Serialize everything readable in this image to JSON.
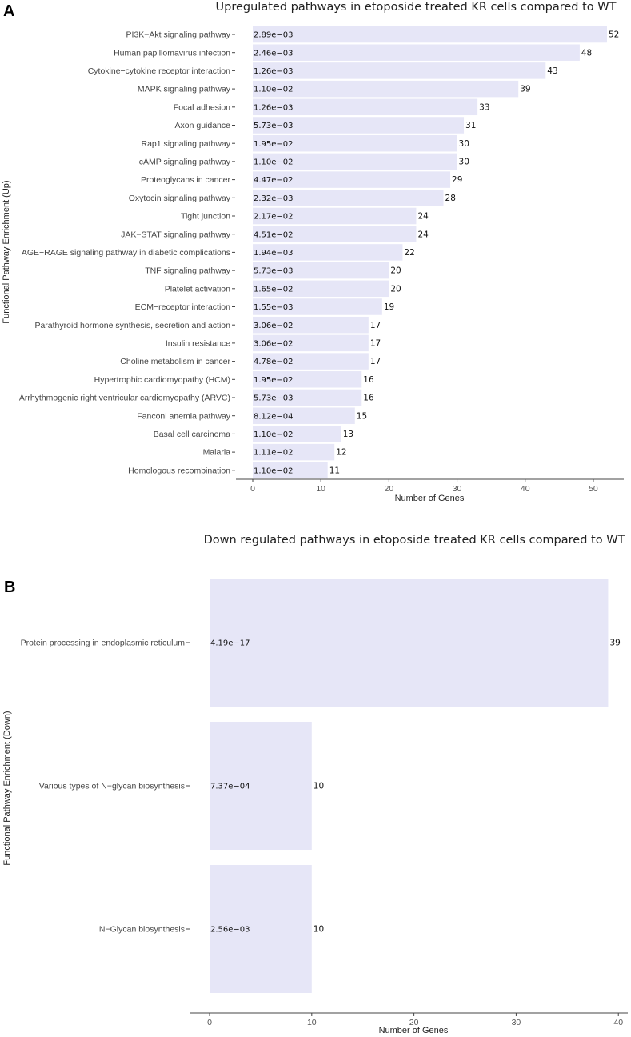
{
  "chart_data": [
    {
      "panel": "A",
      "type": "bar",
      "orientation": "horizontal",
      "title": "Upregulated pathways in etoposide treated KR cells compared to WT",
      "xlabel": "Number of Genes",
      "ylabel": "Functional Pathway Enrichment (Up)",
      "xlim": [
        0,
        54
      ],
      "xticks": [
        0,
        10,
        20,
        30,
        40,
        50
      ],
      "categories": [
        "PI3K−Akt signaling pathway",
        "Human papillomavirus infection",
        "Cytokine−cytokine receptor interaction",
        "MAPK signaling pathway",
        "Focal adhesion",
        "Axon guidance",
        "Rap1 signaling pathway",
        "cAMP signaling pathway",
        "Proteoglycans in cancer",
        "Oxytocin signaling pathway",
        "Tight junction",
        "JAK−STAT signaling pathway",
        "AGE−RAGE signaling pathway in diabetic complications",
        "TNF signaling pathway",
        "Platelet activation",
        "ECM−receptor interaction",
        "Parathyroid hormone synthesis, secretion and action",
        "Insulin resistance",
        "Choline metabolism in cancer",
        "Hypertrophic cardiomyopathy (HCM)",
        "Arrhythmogenic right ventricular cardiomyopathy (ARVC)",
        "Fanconi anemia pathway",
        "Basal cell carcinoma",
        "Malaria",
        "Homologous recombination"
      ],
      "values": [
        52,
        48,
        43,
        39,
        33,
        31,
        30,
        30,
        29,
        28,
        24,
        24,
        22,
        20,
        20,
        19,
        17,
        17,
        17,
        16,
        16,
        15,
        13,
        12,
        11
      ],
      "pvalues": [
        "2.89e−03",
        "2.46e−03",
        "1.26e−03",
        "1.10e−02",
        "1.26e−03",
        "5.73e−03",
        "1.95e−02",
        "1.10e−02",
        "4.47e−02",
        "2.32e−03",
        "2.17e−02",
        "4.51e−02",
        "1.94e−03",
        "5.73e−03",
        "1.65e−02",
        "1.55e−03",
        "3.06e−02",
        "3.06e−02",
        "4.78e−02",
        "1.95e−02",
        "5.73e−03",
        "8.12e−04",
        "1.10e−02",
        "1.11e−02",
        "1.10e−02"
      ]
    },
    {
      "panel": "B",
      "type": "bar",
      "orientation": "horizontal",
      "title": "Down regulated pathways in etoposide treated KR cells compared to WT",
      "xlabel": "Number of Genes",
      "ylabel": "Functional Pathway Enrichment (Down)",
      "xlim": [
        0,
        41
      ],
      "xticks": [
        0,
        10,
        20,
        30,
        40
      ],
      "categories": [
        "Protein processing in endoplasmic reticulum",
        "Various types of N−glycan biosynthesis",
        "N−Glycan biosynthesis"
      ],
      "values": [
        39,
        10,
        10
      ],
      "pvalues": [
        "4.19e−17",
        "7.37e−04",
        "2.56e−03"
      ]
    }
  ],
  "colors": {
    "bar_fill": "#e6e6f7",
    "axis": "#444444",
    "text": "#333333"
  }
}
